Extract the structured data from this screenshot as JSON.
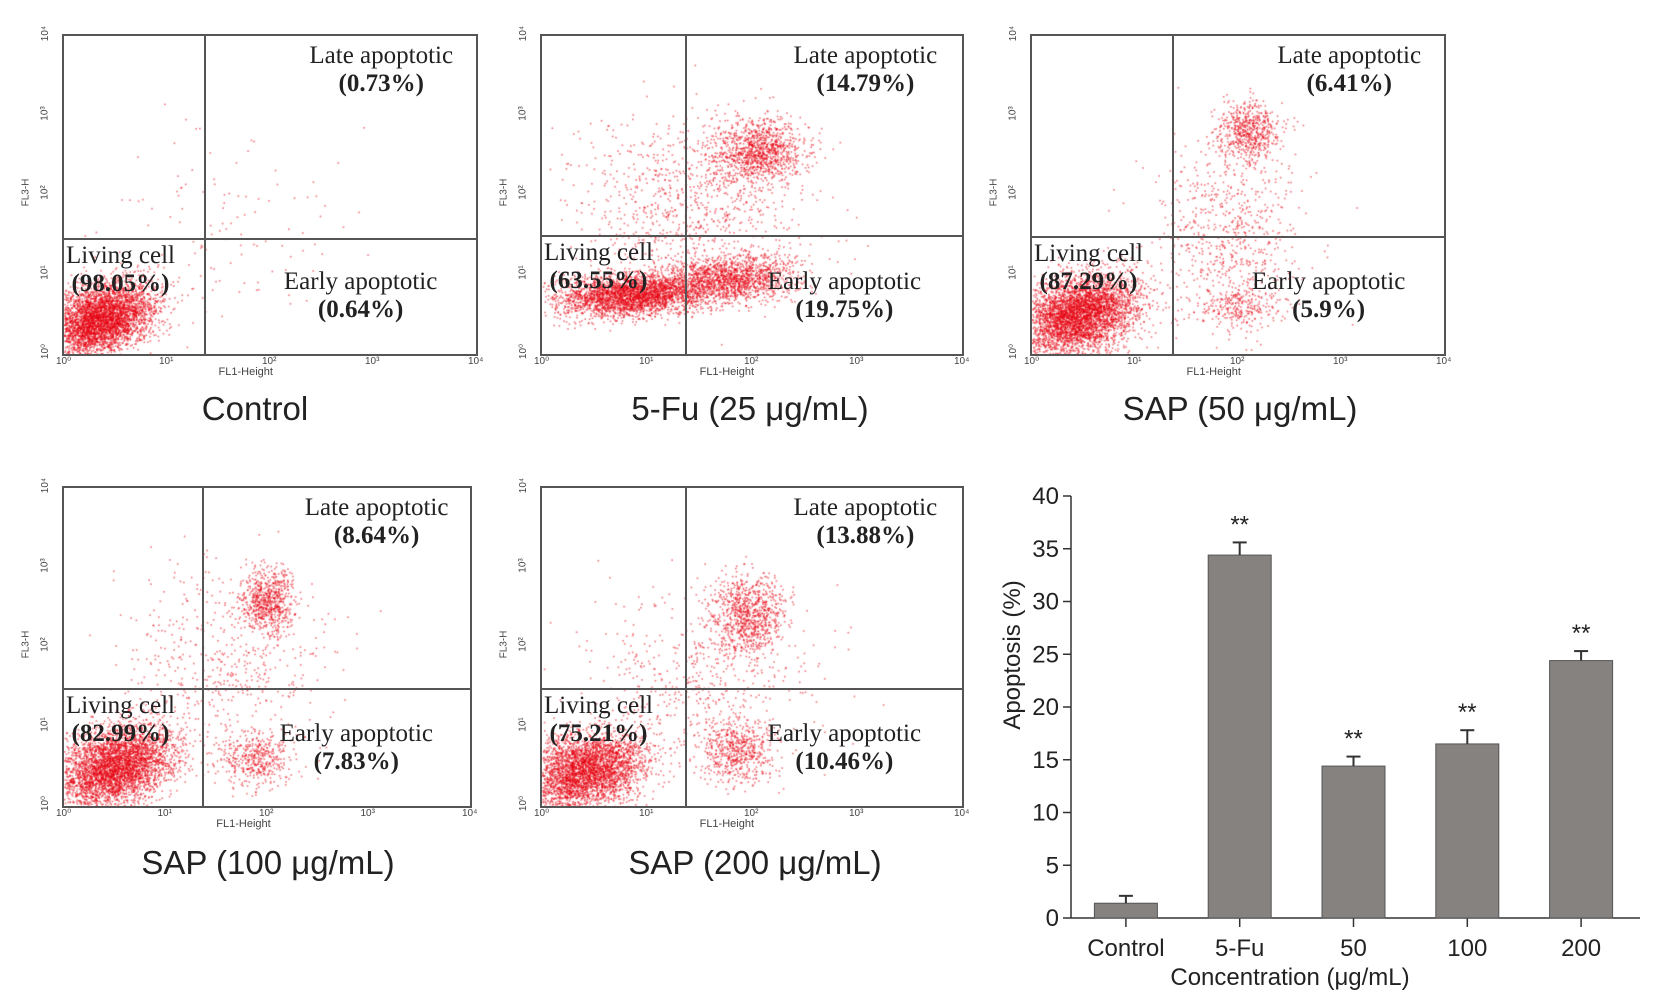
{
  "flow_panels": [
    {
      "title": "Control",
      "xlabel": "FL1-Height",
      "ylabel": "FL3-H",
      "quadrants": {
        "late": {
          "label": "Late  apoptotic",
          "pct": "(0.73%)"
        },
        "early": {
          "label": "Early apoptotic",
          "pct": "(0.64%)"
        },
        "living": {
          "label": "Living cell",
          "pct": "(98.05%)"
        }
      }
    },
    {
      "title": "5-Fu (25 μg/mL)",
      "xlabel": "FL1-Height",
      "ylabel": "FL3-H",
      "quadrants": {
        "late": {
          "label": "Late  apoptotic",
          "pct": "(14.79%)"
        },
        "early": {
          "label": "Early apoptotic",
          "pct": "(19.75%)"
        },
        "living": {
          "label": "Living cell",
          "pct": "(63.55%)"
        }
      }
    },
    {
      "title": "SAP (50 μg/mL)",
      "xlabel": "FL1-Height",
      "ylabel": "FL3-H",
      "quadrants": {
        "late": {
          "label": "Late  apoptotic",
          "pct": "(6.41%)"
        },
        "early": {
          "label": "Early apoptotic",
          "pct": "(5.9%)"
        },
        "living": {
          "label": "Living cell",
          "pct": "(87.29%)"
        }
      }
    },
    {
      "title": "SAP (100 μg/mL)",
      "xlabel": "FL1-Height",
      "ylabel": "FL3-H",
      "quadrants": {
        "late": {
          "label": "Late  apoptotic",
          "pct": "(8.64%)"
        },
        "early": {
          "label": "Early apoptotic",
          "pct": "(7.83%)"
        },
        "living": {
          "label": "Living cell",
          "pct": "(82.99%)"
        }
      }
    },
    {
      "title": "SAP (200 μg/mL)",
      "xlabel": "FL1-Height",
      "ylabel": "FL3-H",
      "quadrants": {
        "late": {
          "label": "Late  apoptotic",
          "pct": "(13.88%)"
        },
        "early": {
          "label": "Early apoptotic",
          "pct": "(10.46%)"
        },
        "living": {
          "label": "Living cell",
          "pct": "(75.21%)"
        }
      }
    }
  ],
  "log_ticks": [
    "10⁰",
    "10¹",
    "10²",
    "10³",
    "10⁴"
  ],
  "dot_color": "#e60012",
  "chart_data": [
    {
      "type": "bar",
      "title": "",
      "categories": [
        "Control",
        "5-Fu",
        "50",
        "100",
        "200"
      ],
      "values": [
        1.4,
        34.4,
        14.4,
        16.5,
        24.4
      ],
      "errors": [
        0.7,
        1.2,
        0.9,
        1.3,
        0.9
      ],
      "significance": [
        "",
        "**",
        "**",
        "**",
        "**"
      ],
      "xlabel": "Concentration (μg/mL)",
      "ylabel": "Apoptosis (%)",
      "ylim": [
        0,
        40
      ],
      "yticks": [
        0,
        5,
        10,
        15,
        20,
        25,
        30,
        35,
        40
      ],
      "bar_color": "#858280",
      "grid": false
    },
    {
      "type": "scatter",
      "title": "Flow cytometry quadrant summary (%)",
      "categories": [
        "Control",
        "5-Fu (25 μg/mL)",
        "SAP (50 μg/mL)",
        "SAP (100 μg/mL)",
        "SAP (200 μg/mL)"
      ],
      "series": [
        {
          "name": "Living cell",
          "values": [
            98.05,
            63.55,
            87.29,
            82.99,
            75.21
          ]
        },
        {
          "name": "Early apoptotic",
          "values": [
            0.64,
            19.75,
            5.9,
            7.83,
            10.46
          ]
        },
        {
          "name": "Late apoptotic",
          "values": [
            0.73,
            14.79,
            6.41,
            8.64,
            13.88
          ]
        }
      ],
      "xlabel": "FL1-Height",
      "ylabel": "FL3-H",
      "xscale": "log",
      "xlim": [
        1,
        10000
      ],
      "yscale": "log",
      "ylim": [
        1,
        10000
      ]
    }
  ]
}
